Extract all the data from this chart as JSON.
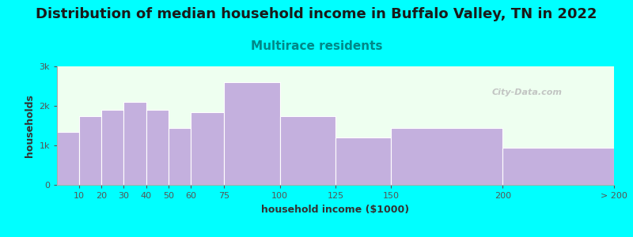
{
  "title": "Distribution of median household income in Buffalo Valley, TN in 2022",
  "subtitle": "Multirace residents",
  "xlabel": "household income ($1000)",
  "ylabel": "households",
  "background_color": "#00FFFF",
  "bar_color": "#c4b0de",
  "bar_edge_color": "#ffffff",
  "bar_lefts": [
    0,
    10,
    20,
    30,
    40,
    50,
    60,
    75,
    100,
    125,
    150,
    200
  ],
  "bar_widths": [
    10,
    10,
    10,
    10,
    10,
    10,
    15,
    25,
    25,
    25,
    50,
    50
  ],
  "values": [
    1350,
    1750,
    1900,
    2100,
    1900,
    1450,
    1850,
    2600,
    1750,
    1200,
    1450,
    950
  ],
  "xtick_positions": [
    10,
    20,
    30,
    40,
    50,
    60,
    75,
    100,
    125,
    150,
    200,
    250
  ],
  "xtick_labels": [
    "10",
    "20",
    "30",
    "40",
    "50",
    "60",
    "75",
    "100",
    "125",
    "150",
    "200",
    "> 200"
  ],
  "ylim": [
    0,
    3000
  ],
  "xlim": [
    0,
    250
  ],
  "yticks": [
    0,
    1000,
    2000,
    3000
  ],
  "ytick_labels": [
    "0",
    "1k",
    "2k",
    "3k"
  ],
  "title_fontsize": 13,
  "subtitle_fontsize": 11,
  "title_color": "#1a1a1a",
  "subtitle_color": "#008888",
  "axis_label_fontsize": 9,
  "tick_fontsize": 8,
  "watermark": "City-Data.com"
}
